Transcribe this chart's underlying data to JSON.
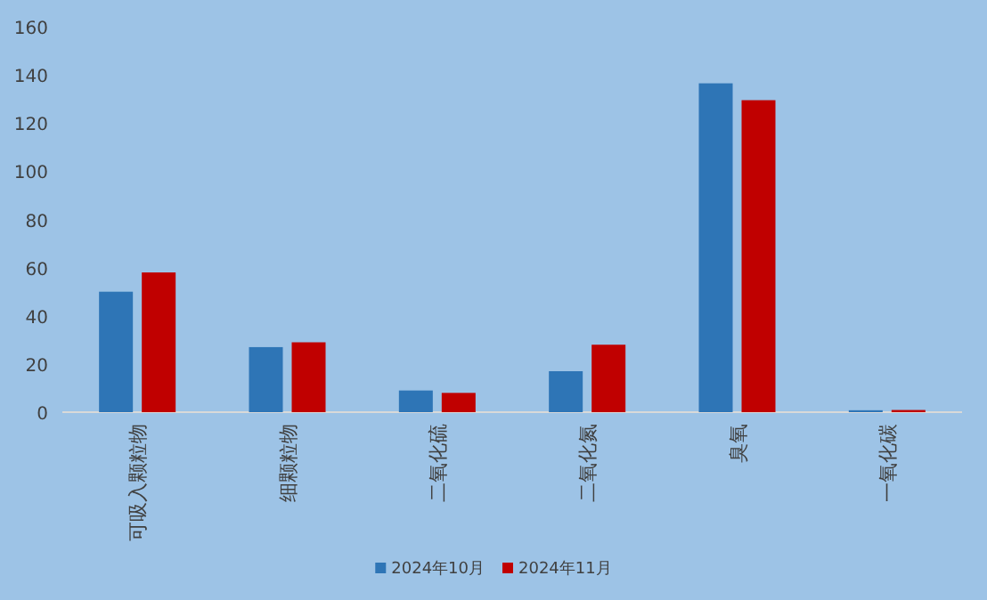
{
  "chart_data": {
    "type": "bar",
    "categories": [
      "可吸入颗粒物",
      "细颗粒物",
      "二氧化硫",
      "二氧化氮",
      "臭氧",
      "一氧化碳"
    ],
    "series": [
      {
        "name": "2024年10月",
        "color": "#2e75b6",
        "values": [
          50,
          27,
          9,
          17,
          136.5,
          0.8
        ]
      },
      {
        "name": "2024年11月",
        "color": "#c00000",
        "values": [
          58,
          29,
          8,
          28,
          129.5,
          0.9
        ]
      }
    ],
    "ylim": [
      0,
      160
    ],
    "yticks": [
      0,
      20,
      40,
      60,
      80,
      100,
      120,
      140,
      160
    ],
    "grid": false,
    "legend": "bottom"
  }
}
